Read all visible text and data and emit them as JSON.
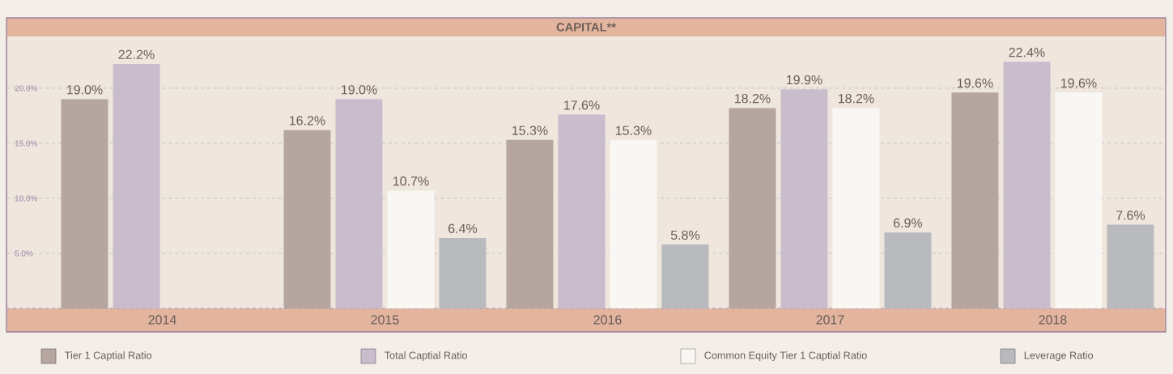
{
  "chart_data": {
    "type": "bar",
    "title": "CAPITAL**",
    "categories": [
      "2014",
      "2015",
      "2016",
      "2017",
      "2018"
    ],
    "series": [
      {
        "name": "Tier 1 Captial Ratio",
        "color": "#b5a79f",
        "values": [
          19.0,
          16.2,
          15.3,
          18.2,
          19.6
        ],
        "value_labels": [
          "19.0%",
          "16.2%",
          "15.3%",
          "18.2%",
          "19.6%"
        ]
      },
      {
        "name": "Total Captial Ratio",
        "color": "#c9bccc",
        "values": [
          22.2,
          19.0,
          17.6,
          19.9,
          22.4
        ],
        "value_labels": [
          "22.2%",
          "19.0%",
          "17.6%",
          "19.9%",
          "22.4%"
        ]
      },
      {
        "name": "Common Equity Tier 1 Captial Ratio",
        "color": "#f9f7f3",
        "values": [
          null,
          10.7,
          15.3,
          18.2,
          19.6
        ],
        "value_labels": [
          null,
          "10.7%",
          "15.3%",
          "18.2%",
          "19.6%"
        ]
      },
      {
        "name": "Leverage Ratio",
        "color": "#b8babd",
        "values": [
          null,
          6.4,
          5.8,
          6.9,
          7.6
        ],
        "value_labels": [
          null,
          "6.4%",
          "5.8%",
          "6.9%",
          "7.6%"
        ]
      }
    ],
    "ylim": [
      0,
      24.7
    ],
    "yticks": [
      {
        "value": 5,
        "label": "5.0%"
      },
      {
        "value": 10,
        "label": "10.0%"
      },
      {
        "value": 15,
        "label": "15.0%"
      },
      {
        "value": 20,
        "label": "20.0%"
      }
    ],
    "grid": "y",
    "legend": "bottom"
  }
}
